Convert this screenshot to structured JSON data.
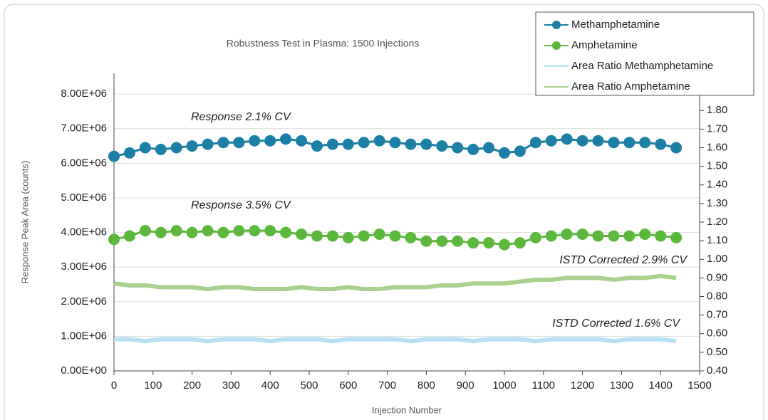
{
  "chart_data": {
    "type": "line",
    "title": "Robustness Test in Plasma: 1500 Injections",
    "x_label": "Injection Number",
    "y_label": "Response Peak Area (counts)",
    "annotations": [
      "Response 2.1% CV",
      "Response 3.5% CV",
      "ISTD Corrected 2.9% CV",
      "ISTD Corrected 1.6% CV"
    ],
    "x": [
      0,
      40,
      80,
      120,
      160,
      200,
      240,
      280,
      320,
      360,
      400,
      440,
      480,
      520,
      560,
      600,
      640,
      680,
      720,
      760,
      800,
      840,
      880,
      920,
      960,
      1000,
      1040,
      1080,
      1120,
      1160,
      1200,
      1240,
      1280,
      1320,
      1360,
      1400,
      1440
    ],
    "series": [
      {
        "name": "Methamphetamine",
        "color": "#1b7fa6",
        "marker": "circle",
        "axis": "y",
        "values": [
          6200000,
          6300000,
          6450000,
          6400000,
          6450000,
          6500000,
          6550000,
          6600000,
          6600000,
          6650000,
          6650000,
          6700000,
          6650000,
          6500000,
          6550000,
          6550000,
          6600000,
          6650000,
          6600000,
          6550000,
          6550000,
          6500000,
          6450000,
          6400000,
          6450000,
          6300000,
          6350000,
          6600000,
          6650000,
          6700000,
          6650000,
          6650000,
          6600000,
          6600000,
          6600000,
          6550000,
          6450000
        ]
      },
      {
        "name": "Amphetamine",
        "color": "#5cb83c",
        "marker": "circle",
        "axis": "y",
        "values": [
          3800000,
          3900000,
          4050000,
          4000000,
          4050000,
          4000000,
          4050000,
          4000000,
          4050000,
          4050000,
          4050000,
          4000000,
          3950000,
          3900000,
          3900000,
          3850000,
          3900000,
          3950000,
          3900000,
          3850000,
          3750000,
          3750000,
          3750000,
          3700000,
          3700000,
          3650000,
          3700000,
          3850000,
          3900000,
          3950000,
          3950000,
          3900000,
          3900000,
          3900000,
          3950000,
          3900000,
          3850000
        ]
      },
      {
        "name": "Area Ratio Methamphetamine",
        "color": "#b5e1f3",
        "marker": "none",
        "axis": "y2",
        "values": [
          0.57,
          0.57,
          0.56,
          0.57,
          0.57,
          0.57,
          0.56,
          0.57,
          0.57,
          0.57,
          0.56,
          0.57,
          0.57,
          0.57,
          0.56,
          0.57,
          0.57,
          0.57,
          0.57,
          0.56,
          0.57,
          0.57,
          0.57,
          0.56,
          0.57,
          0.57,
          0.57,
          0.56,
          0.57,
          0.57,
          0.57,
          0.57,
          0.56,
          0.57,
          0.57,
          0.57,
          0.56
        ]
      },
      {
        "name": "Area Ratio Amphetamine",
        "color": "#a9d18e",
        "marker": "none",
        "axis": "y2",
        "values": [
          0.87,
          0.86,
          0.86,
          0.85,
          0.85,
          0.85,
          0.84,
          0.85,
          0.85,
          0.84,
          0.84,
          0.84,
          0.85,
          0.84,
          0.84,
          0.85,
          0.84,
          0.84,
          0.85,
          0.85,
          0.85,
          0.86,
          0.86,
          0.87,
          0.87,
          0.87,
          0.88,
          0.89,
          0.89,
          0.9,
          0.9,
          0.9,
          0.89,
          0.9,
          0.9,
          0.91,
          0.9
        ]
      }
    ],
    "xlim": [
      0,
      1500
    ],
    "xticks": [
      0,
      100,
      200,
      300,
      400,
      500,
      600,
      700,
      800,
      900,
      1000,
      1100,
      1200,
      1300,
      1400,
      1500
    ],
    "ylim": [
      0,
      8600000
    ],
    "yticks": [
      {
        "value": 0,
        "label": "0.00E+00"
      },
      {
        "value": 1000000,
        "label": "1.00E+06"
      },
      {
        "value": 2000000,
        "label": "2.00E+06"
      },
      {
        "value": 3000000,
        "label": "3.00E+06"
      },
      {
        "value": 4000000,
        "label": "4.00E+06"
      },
      {
        "value": 5000000,
        "label": "5.00E+06"
      },
      {
        "value": 6000000,
        "label": "6.00E+06"
      },
      {
        "value": 7000000,
        "label": "7.00E+06"
      },
      {
        "value": 8000000,
        "label": "8.00E+06"
      }
    ],
    "y2lim": [
      0.4,
      2.0
    ],
    "y2ticks": [
      {
        "value": 0.4,
        "label": "0.40"
      },
      {
        "value": 0.5,
        "label": "0.50"
      },
      {
        "value": 0.6,
        "label": "0.60"
      },
      {
        "value": 0.7,
        "label": "0.70"
      },
      {
        "value": 0.8,
        "label": "0.80"
      },
      {
        "value": 0.9,
        "label": "0.90"
      },
      {
        "value": 1.0,
        "label": "1.00"
      },
      {
        "value": 1.1,
        "label": "1.10"
      },
      {
        "value": 1.2,
        "label": "1.20"
      },
      {
        "value": 1.3,
        "label": "1.30"
      },
      {
        "value": 1.4,
        "label": "1.40"
      },
      {
        "value": 1.5,
        "label": "1.50"
      },
      {
        "value": 1.6,
        "label": "1.60"
      },
      {
        "value": 1.7,
        "label": "1.70"
      },
      {
        "value": 1.8,
        "label": "1.80"
      }
    ],
    "grid": true,
    "legend": "top-right"
  }
}
